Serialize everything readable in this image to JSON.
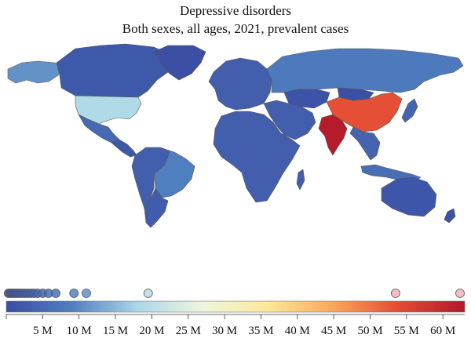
{
  "title": "Depressive disorders",
  "subtitle": "Both sexes, all ages, 2021, prevalent cases",
  "colors": {
    "scale": [
      "#3b4ea4",
      "#4f7fbf",
      "#a9d6ea",
      "#eef6dc",
      "#fde89a",
      "#f9a65a",
      "#e34a33",
      "#b2182b"
    ],
    "ocean": "#ffffff",
    "border": "#555555"
  },
  "legend": {
    "min": 0,
    "max": 63,
    "unit_suffix": "M",
    "ticks": [
      {
        "value": 5,
        "label": "5 M"
      },
      {
        "value": 10,
        "label": "10 M"
      },
      {
        "value": 15,
        "label": "15 M"
      },
      {
        "value": 20,
        "label": "20 M"
      },
      {
        "value": 25,
        "label": "25 M"
      },
      {
        "value": 30,
        "label": "30 M"
      },
      {
        "value": 35,
        "label": "35 M"
      },
      {
        "value": 40,
        "label": "40 M"
      },
      {
        "value": 45,
        "label": "45 M"
      },
      {
        "value": 50,
        "label": "50 M"
      },
      {
        "value": 55,
        "label": "55 M"
      },
      {
        "value": 60,
        "label": "60 M"
      }
    ],
    "country_markers_millions": [
      0.3,
      0.6,
      0.9,
      1.2,
      1.5,
      1.8,
      2.2,
      2.6,
      3.0,
      3.4,
      3.8,
      4.3,
      5.0,
      5.8,
      6.8,
      9.3,
      11.0,
      19.5,
      53.5,
      62.5
    ]
  },
  "regions": [
    {
      "name": "Canada",
      "value": 2.0
    },
    {
      "name": "Alaska",
      "value": 11.0
    },
    {
      "name": "United States",
      "value": 19.0
    },
    {
      "name": "Greenland",
      "value": 0.1
    },
    {
      "name": "Mexico",
      "value": 5.0
    },
    {
      "name": "Central America",
      "value": 2.0
    },
    {
      "name": "South America North",
      "value": 3.0
    },
    {
      "name": "Brazil",
      "value": 9.0
    },
    {
      "name": "Argentina",
      "value": 2.5
    },
    {
      "name": "Europe",
      "value": 3.0
    },
    {
      "name": "Russia",
      "value": 8.0
    },
    {
      "name": "Kazakhstan",
      "value": 1.0
    },
    {
      "name": "Middle East",
      "value": 3.0
    },
    {
      "name": "Africa",
      "value": 3.0
    },
    {
      "name": "China",
      "value": 53.5
    },
    {
      "name": "India",
      "value": 62.5
    },
    {
      "name": "Mongolia",
      "value": 0.2
    },
    {
      "name": "Southeast Asia",
      "value": 4.0
    },
    {
      "name": "Japan",
      "value": 4.0
    },
    {
      "name": "Indonesia",
      "value": 6.0
    },
    {
      "name": "Australia",
      "value": 1.5
    },
    {
      "name": "New Zealand",
      "value": 0.3
    }
  ]
}
